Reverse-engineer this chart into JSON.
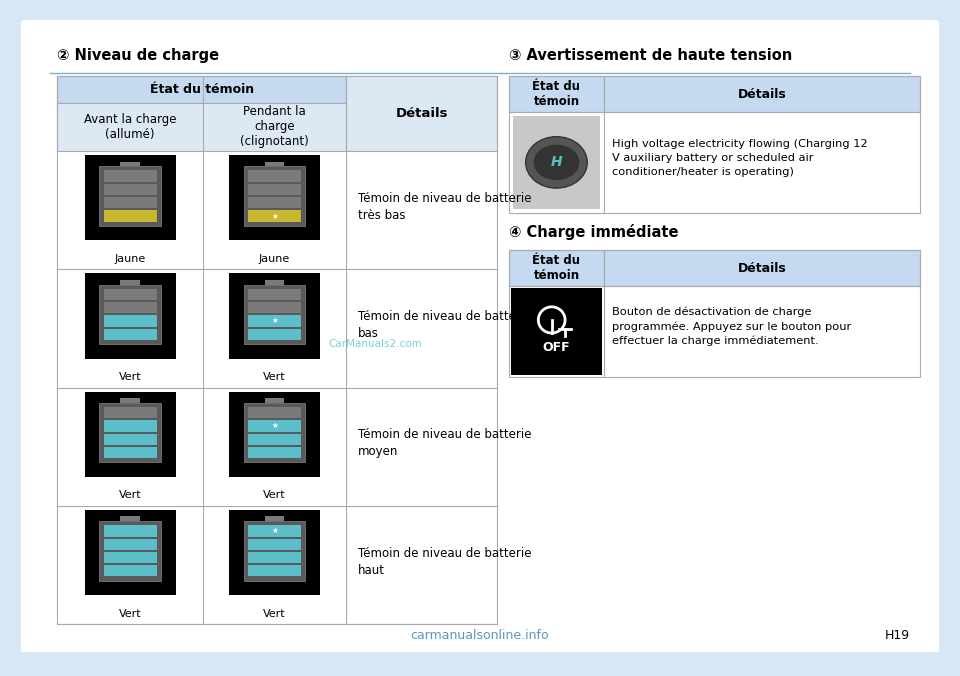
{
  "bg_color": "#d6e8f5",
  "page_bg": "#ffffff",
  "title_left": "② Niveau de charge",
  "title_right": "③ Avertissement de haute tension",
  "title_right2": "④ Charge immédiate",
  "header_bg": "#c5d9f1",
  "subheader_bg": "#dce9f5",
  "table_border": "#aaaaaa",
  "left_table": {
    "rows": [
      {
        "color_label": "Jaune",
        "detail": "Témoin de niveau de batterie\ntrès bas",
        "fill_level": 1
      },
      {
        "color_label": "Vert",
        "detail": "Témoin de niveau de batterie\nbas",
        "fill_level": 2
      },
      {
        "color_label": "Vert",
        "detail": "Témoin de niveau de batterie\nmoyen",
        "fill_level": 3
      },
      {
        "color_label": "Vert",
        "detail": "Témoin de niveau de batterie\nhaut",
        "fill_level": 4
      }
    ]
  },
  "right_table1_detail": "High voltage electricity flowing (Charging 12\nV auxiliary battery or scheduled air\nconditioner/heater is operating)",
  "right_table2_detail": "Bouton de désactivation de charge\nprogrammée. Appuyez sur le bouton pour\neffectuer la charge immédiatement.",
  "footer_text": "carmanualsonline.info",
  "page_num": "H19",
  "teal_color": "#5bbfca",
  "yellow_color": "#c8b830",
  "gray_filled": "#808080",
  "gray_empty": "#909090",
  "watermark": "CarManuals2.com"
}
